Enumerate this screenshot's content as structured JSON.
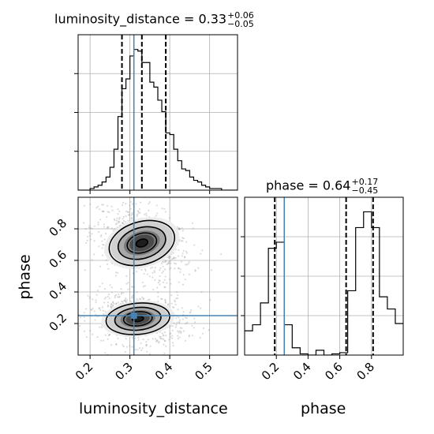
{
  "colors": {
    "truth": "#4682b4",
    "hist": "#000000",
    "grid": "#b0b0b0"
  },
  "panels": {
    "ld_title": {
      "name": "luminosity_distance",
      "median": "0.33",
      "plus": "+0.06",
      "minus": "−0.05"
    },
    "ph_title": {
      "name": "phase",
      "median": "0.64",
      "plus": "+0.17",
      "minus": "−0.45"
    },
    "xlabel_left": "luminosity_distance",
    "xlabel_right": "phase",
    "ylabel_left": "phase"
  },
  "chart_data": [
    {
      "type": "step-histogram",
      "parameter": "luminosity_distance",
      "xlim": [
        0.17,
        0.57
      ],
      "x_ticks": [
        0.2,
        0.3,
        0.4,
        0.5
      ],
      "x_tick_labels": [
        "0.2",
        "0.3",
        "0.4",
        "0.5"
      ],
      "bin_edges": [
        0.17,
        0.18,
        0.19,
        0.2,
        0.21,
        0.22,
        0.23,
        0.24,
        0.25,
        0.26,
        0.27,
        0.28,
        0.29,
        0.3,
        0.31,
        0.32,
        0.33,
        0.34,
        0.35,
        0.36,
        0.37,
        0.38,
        0.39,
        0.4,
        0.41,
        0.42,
        0.43,
        0.44,
        0.45,
        0.46,
        0.47,
        0.48,
        0.49,
        0.5,
        0.51,
        0.52,
        0.53,
        0.54,
        0.55,
        0.56,
        0.57
      ],
      "counts": [
        0,
        0,
        0,
        1,
        2,
        3,
        5,
        8,
        14,
        25,
        45,
        62,
        68,
        82,
        86,
        85,
        78,
        78,
        66,
        63,
        55,
        48,
        35,
        34,
        25,
        18,
        13,
        12,
        8,
        6,
        5,
        3,
        2,
        1,
        1,
        1,
        0,
        0,
        0,
        0
      ],
      "ylim": [
        0,
        95
      ],
      "quantiles": [
        0.28,
        0.33,
        0.39
      ],
      "truth": 0.31,
      "grid": true
    },
    {
      "type": "step-histogram",
      "parameter": "phase",
      "xlim": [
        0.0,
        1.0
      ],
      "x_ticks": [
        0.2,
        0.4,
        0.6,
        0.8
      ],
      "x_tick_labels": [
        "0.2",
        "0.4",
        "0.6",
        "0.8"
      ],
      "bin_edges": [
        0.0,
        0.05,
        0.1,
        0.15,
        0.2,
        0.25,
        0.3,
        0.35,
        0.4,
        0.45,
        0.5,
        0.55,
        0.6,
        0.65,
        0.7,
        0.75,
        0.8,
        0.85,
        0.9,
        0.95,
        1.0
      ],
      "counts": [
        20,
        25,
        43,
        88,
        93,
        25,
        6,
        1,
        0,
        4,
        0,
        1,
        2,
        53,
        105,
        118,
        105,
        48,
        38,
        26
      ],
      "ylim": [
        0,
        130
      ],
      "quantiles": [
        0.19,
        0.64,
        0.81
      ],
      "truth": 0.25,
      "grid": true
    },
    {
      "type": "2d-density",
      "x_parameter": "luminosity_distance",
      "y_parameter": "phase",
      "xlim": [
        0.17,
        0.57
      ],
      "ylim": [
        0.0,
        1.0
      ],
      "x_ticks": [
        0.2,
        0.3,
        0.4,
        0.5
      ],
      "x_tick_labels": [
        "0.2",
        "0.3",
        "0.4",
        "0.5"
      ],
      "y_ticks": [
        0.2,
        0.4,
        0.6,
        0.8
      ],
      "y_tick_labels": [
        "0.2",
        "0.4",
        "0.6",
        "0.8"
      ],
      "modes": [
        {
          "x": 0.33,
          "y": 0.71,
          "sx": 0.042,
          "sy": 0.075,
          "tilt": -0.9
        },
        {
          "x": 0.32,
          "y": 0.23,
          "sx": 0.04,
          "sy": 0.055,
          "tilt": -0.3
        }
      ],
      "truth": {
        "x": 0.31,
        "y": 0.25
      },
      "contour_levels": 3,
      "grid": true
    }
  ]
}
